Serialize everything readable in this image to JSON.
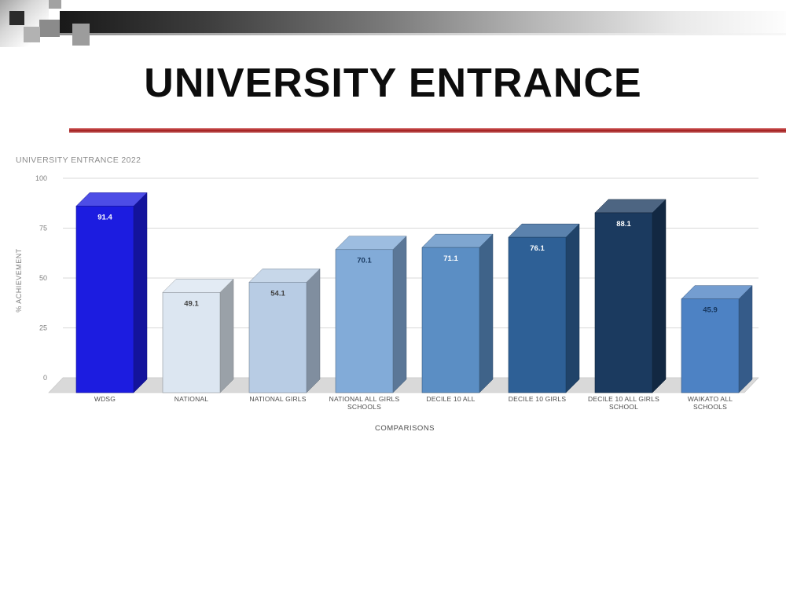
{
  "slide": {
    "title": "UNIVERSITY ENTRANCE",
    "divider_color": "#b92f2f"
  },
  "chart_data": {
    "type": "bar",
    "style": "3d",
    "title": "UNIVERSITY ENTRANCE 2022",
    "xlabel": "COMPARISONS",
    "ylabel": "% ACHIEVEMENT",
    "ylim": [
      0,
      100
    ],
    "yticks": [
      0,
      25,
      50,
      75,
      100
    ],
    "grid": true,
    "legend": false,
    "categories": [
      "WDSG",
      "NATIONAL",
      "NATIONAL GIRLS",
      "NATIONAL ALL GIRLS SCHOOLS",
      "DECILE 10 ALL",
      "DECILE 10 GIRLS",
      "DECILE 10 ALL GIRLS SCHOOL",
      "WAIKATO ALL SCHOOLS"
    ],
    "category_lines": [
      [
        "WDSG"
      ],
      [
        "NATIONAL"
      ],
      [
        "NATIONAL GIRLS"
      ],
      [
        "NATIONAL ALL GIRLS",
        "SCHOOLS"
      ],
      [
        "DECILE 10 ALL"
      ],
      [
        "DECILE 10 GIRLS"
      ],
      [
        "DECILE 10 ALL GIRLS",
        "SCHOOL"
      ],
      [
        "WAIKATO ALL",
        "SCHOOLS"
      ]
    ],
    "values": [
      91.4,
      49.1,
      54.1,
      70.1,
      71.1,
      76.1,
      88.1,
      45.9
    ],
    "bar_colors": [
      "#1c1ce0",
      "#dce6f1",
      "#b8cce4",
      "#82abd8",
      "#5b8ec4",
      "#2e6096",
      "#1b3a5f",
      "#4d82c4"
    ],
    "value_label_colors": [
      "#ffffff",
      "#404040",
      "#404040",
      "#17375e",
      "#ffffff",
      "#ffffff",
      "#ffffff",
      "#17375e"
    ],
    "title_color": "#8c8c8c",
    "axis_text_color": "#7f7f7f",
    "category_text_color": "#4d4d4d",
    "gridline_color": "#d9d9d9",
    "floor_color": "#d9d9d9"
  }
}
